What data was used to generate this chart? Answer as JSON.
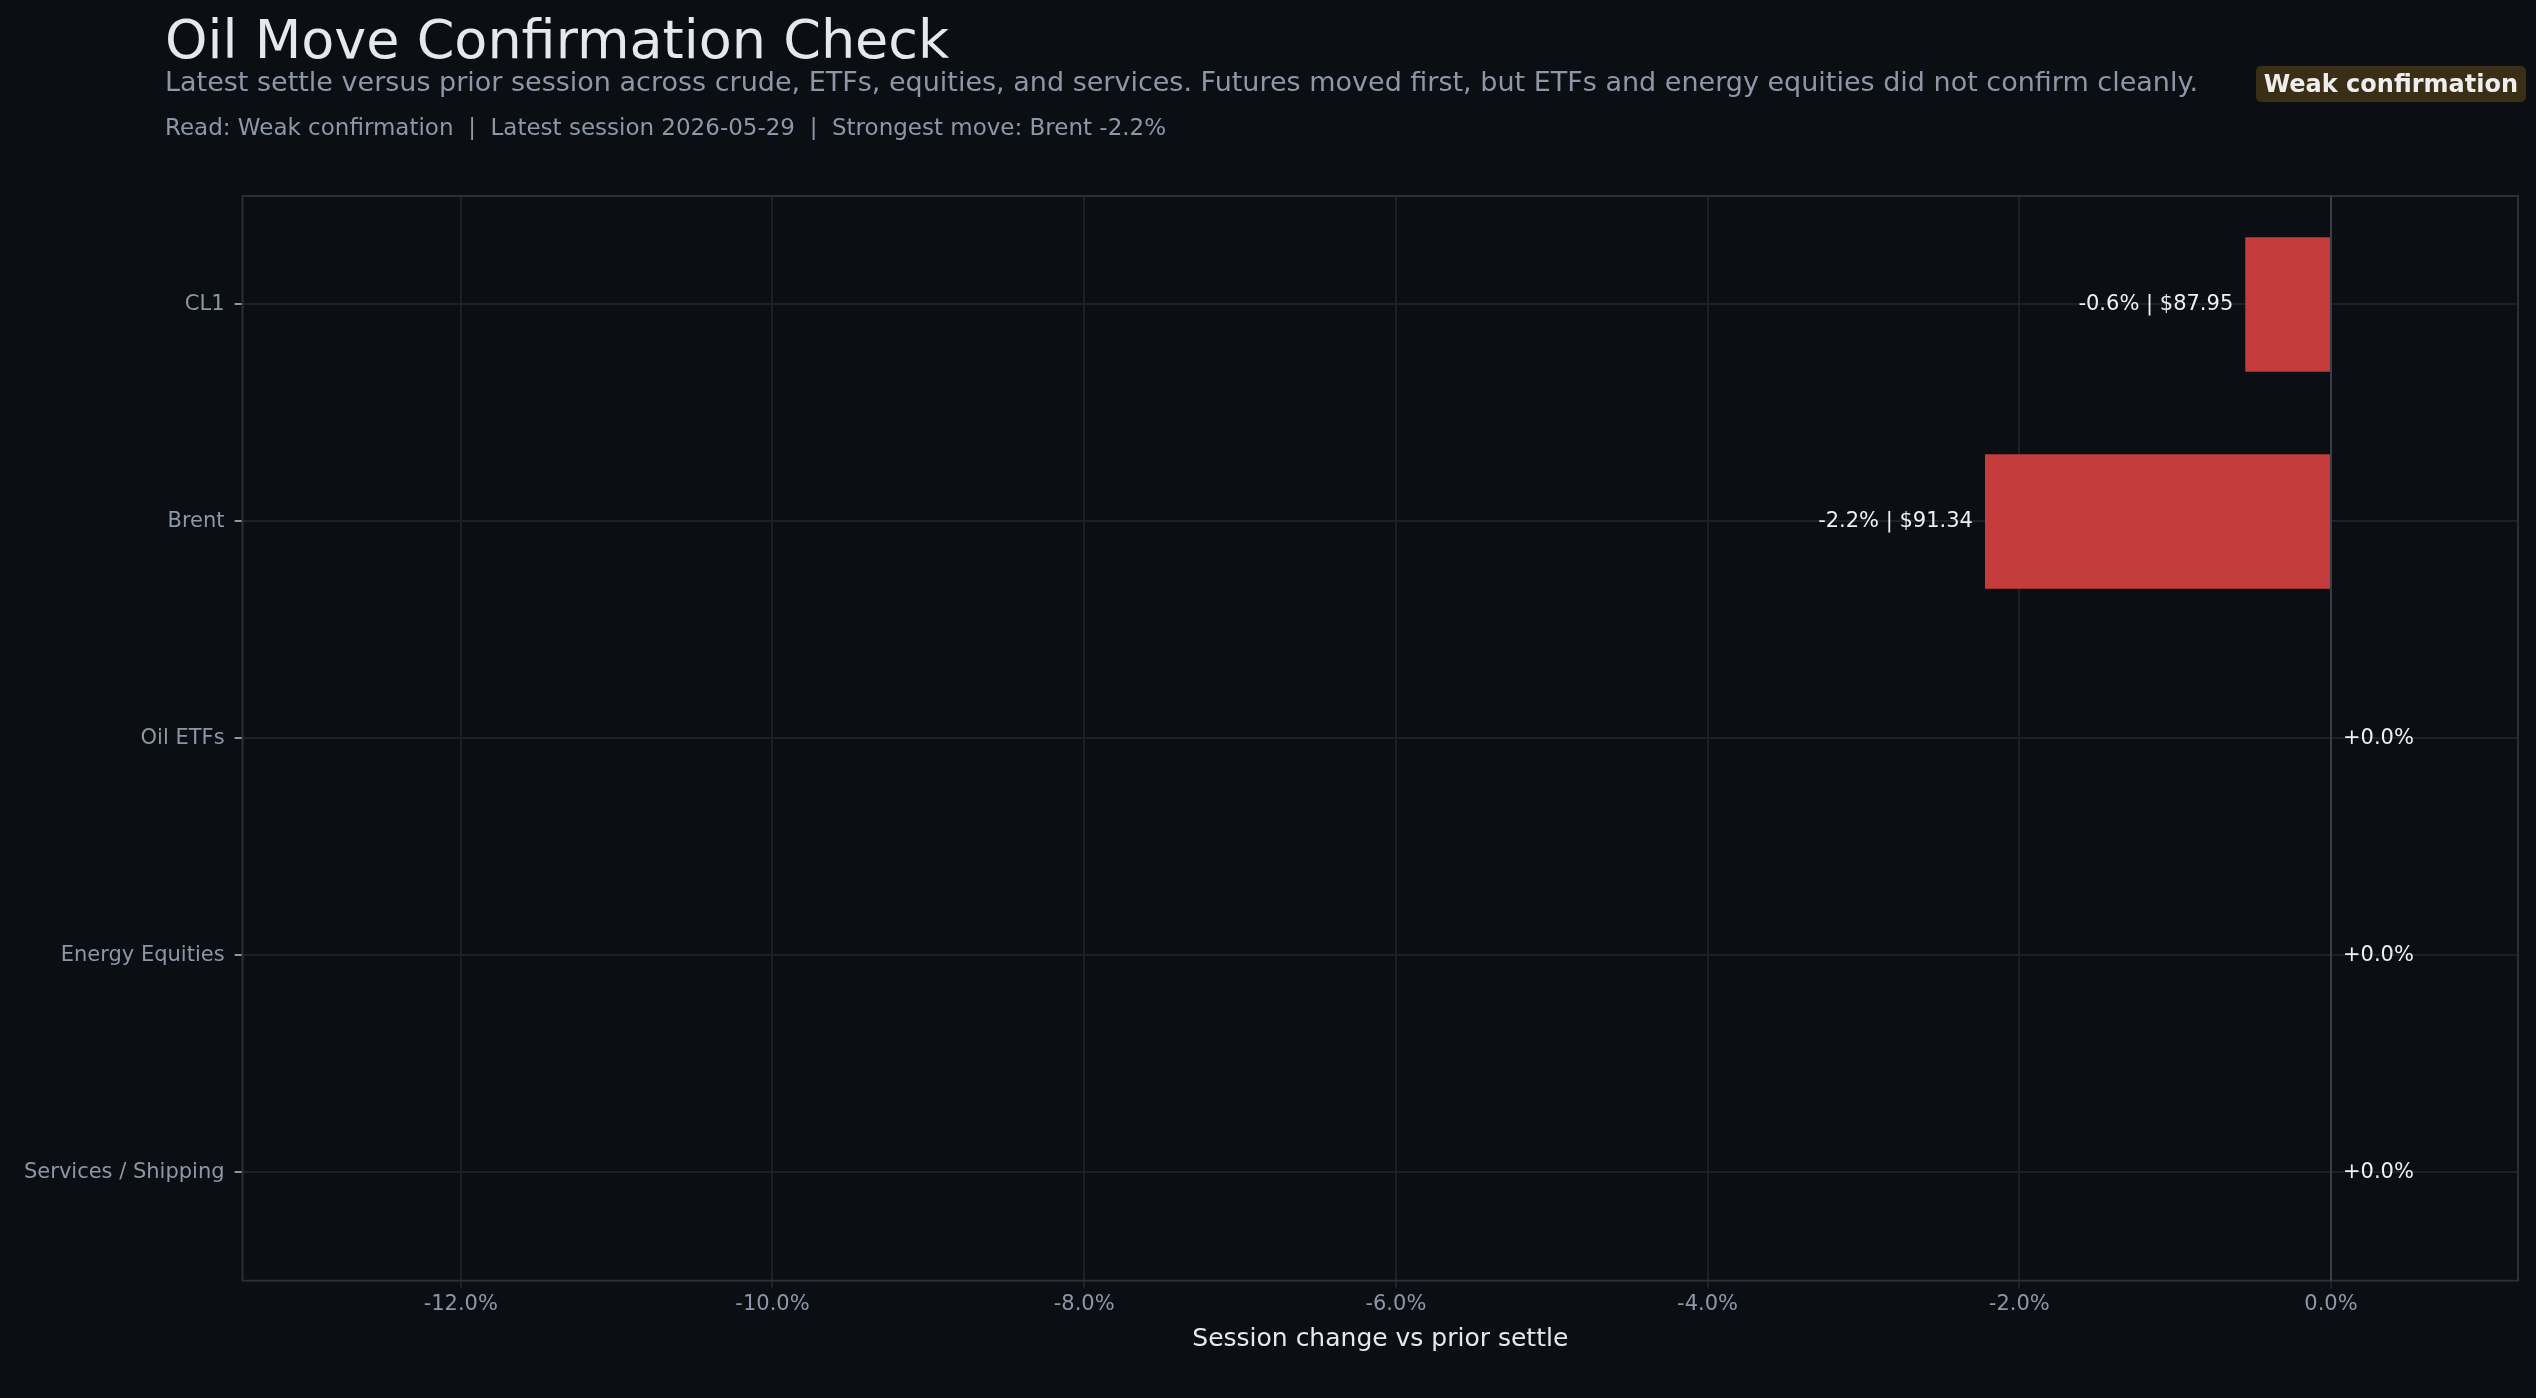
{
  "chart_data": {
    "type": "bar",
    "orientation": "horizontal",
    "title": "Oil Move Confirmation Check",
    "subtitle": "Latest settle versus prior session across crude, ETFs, equities, and services. Futures moved first, but ETFs and energy equities did not confirm cleanly.",
    "annotations": [
      "Read: Weak confirmation  |  Latest session 2026-05-29  |  Strongest move: Brent -2.2%",
      "Weak confirmation"
    ],
    "xlabel": "Session change vs prior settle",
    "categories": [
      "CL1",
      "Brent",
      "Oil ETFs",
      "Energy Equities",
      "Services / Shipping"
    ],
    "values": [
      -0.55,
      -2.22,
      0,
      0,
      0
    ],
    "value_labels": [
      "-0.6% | $87.95",
      "-2.2% | $91.34",
      "+0.0%",
      "+0.0%",
      "+0.0%"
    ],
    "color": "#c43c3c",
    "xlim": [
      -13.4,
      1.2
    ],
    "xticks": [
      {
        "value": -12,
        "label": "-12.0%"
      },
      {
        "value": -10,
        "label": "-10.0%"
      },
      {
        "value": -8,
        "label": "-8.0%"
      },
      {
        "value": -6,
        "label": "-6.0%"
      },
      {
        "value": -4,
        "label": "-4.0%"
      },
      {
        "value": -2,
        "label": "-2.0%"
      },
      {
        "value": 0,
        "label": "0.0%"
      }
    ],
    "ref_lines": [
      {
        "axis": "x",
        "value": 0,
        "color": "#3a404b"
      }
    ],
    "grid": true,
    "legend": false
  }
}
